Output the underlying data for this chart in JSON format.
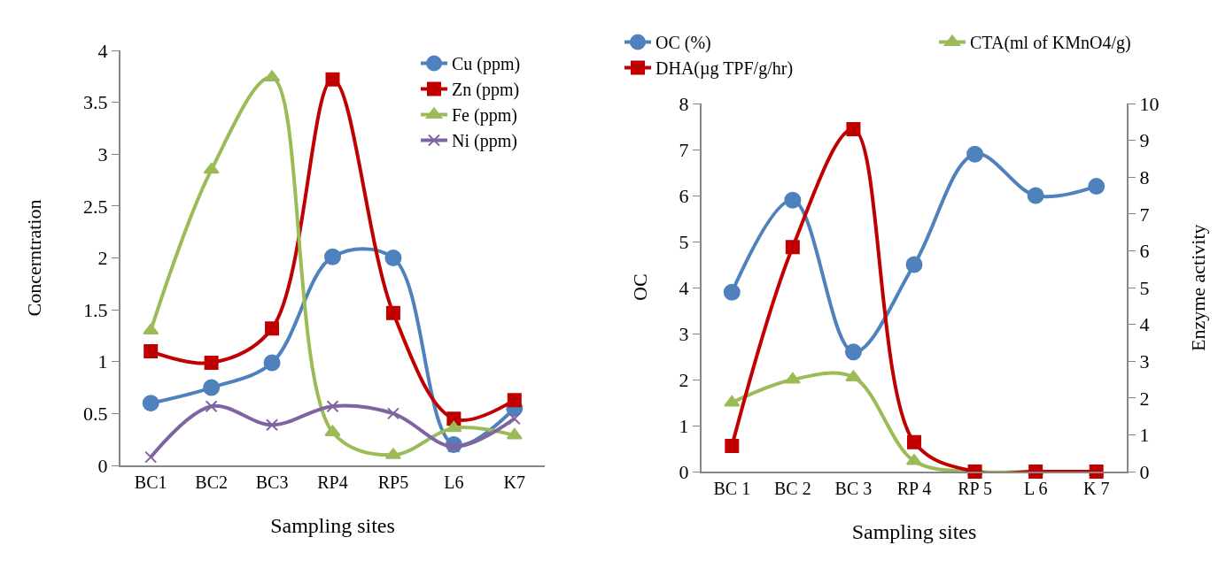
{
  "chart_data": [
    {
      "type": "line",
      "xlabel": "Sampling sites",
      "ylabel": "Concerntration",
      "categories": [
        "BC1",
        "BC2",
        "BC3",
        "RP4",
        "RP5",
        "L6",
        "K7"
      ],
      "ylim": [
        0,
        4
      ],
      "yticks": [
        0,
        0.5,
        1,
        1.5,
        2,
        2.5,
        3,
        3.5,
        4
      ],
      "grid": false,
      "legend": "top right",
      "series": [
        {
          "name": "Cu (ppm)",
          "color": "#4f81bd",
          "marker": "circle",
          "values": [
            0.6,
            0.75,
            0.99,
            2.01,
            2.0,
            0.2,
            0.55
          ]
        },
        {
          "name": "Zn (ppm)",
          "color": "#c00000",
          "marker": "square",
          "values": [
            1.1,
            0.99,
            1.32,
            3.72,
            1.47,
            0.45,
            0.63
          ]
        },
        {
          "name": "Fe (ppm)",
          "color": "#9bbb59",
          "marker": "triangle",
          "values": [
            1.3,
            2.85,
            3.74,
            0.32,
            0.1,
            0.36,
            0.29
          ]
        },
        {
          "name": "Ni (ppm)",
          "color": "#8064a2",
          "marker": "cross",
          "values": [
            0.08,
            0.57,
            0.39,
            0.57,
            0.5,
            0.18,
            0.45
          ]
        }
      ]
    },
    {
      "type": "line",
      "xlabel": "Sampling sites",
      "ylabel": "OC",
      "y2label": "Enzyme activity",
      "categories": [
        "BC 1",
        "BC 2",
        "BC 3",
        "RP 4",
        "RP 5",
        "L 6",
        "K 7"
      ],
      "ylim": [
        0,
        8
      ],
      "yticks": [
        0,
        1,
        2,
        3,
        4,
        5,
        6,
        7,
        8
      ],
      "y2lim": [
        0,
        10
      ],
      "y2ticks": [
        0,
        1,
        2,
        3,
        4,
        5,
        6,
        7,
        8,
        9,
        10
      ],
      "grid": false,
      "legend": "top",
      "series": [
        {
          "name": "OC (%)",
          "color": "#4f81bd",
          "marker": "circle",
          "values": [
            3.9,
            5.9,
            2.6,
            4.5,
            6.9,
            6.0,
            6.2
          ]
        },
        {
          "name": "CTA(ml of KMnO4/g)",
          "color": "#9bbb59",
          "marker": "triangle",
          "values": [
            1.5,
            2.0,
            2.05,
            0.23,
            0,
            0,
            0
          ]
        },
        {
          "name": "DHA(µg TPF/g/hr)",
          "color": "#c00000",
          "marker": "square",
          "axis": "y2",
          "values": [
            0.7,
            6.1,
            9.3,
            0.8,
            0,
            0,
            0
          ]
        }
      ]
    }
  ]
}
